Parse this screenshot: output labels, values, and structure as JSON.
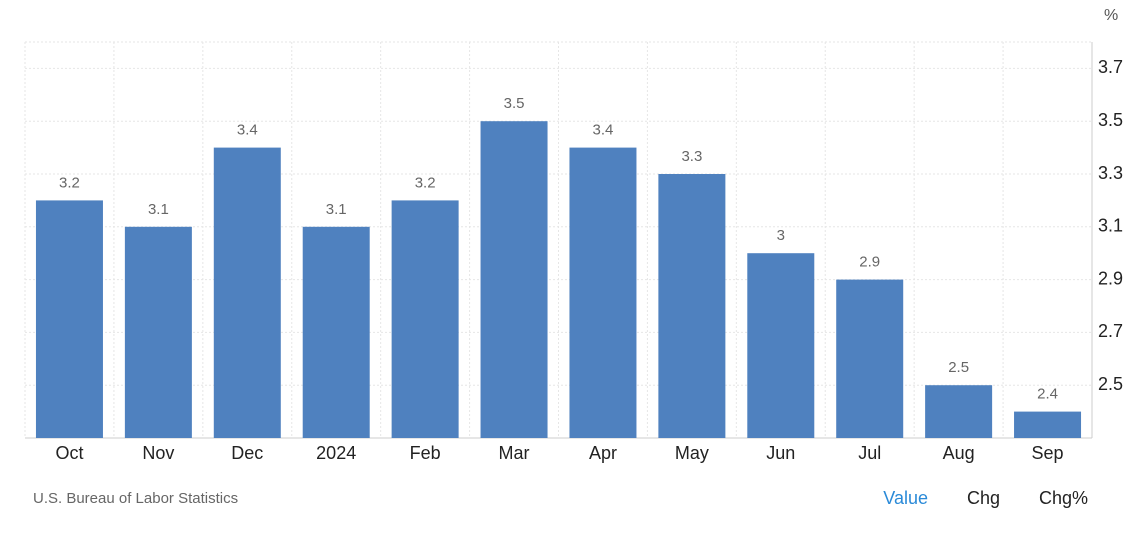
{
  "chart_data": {
    "type": "bar",
    "unit": "%",
    "categories": [
      "Oct",
      "Nov",
      "Dec",
      "2024",
      "Feb",
      "Mar",
      "Apr",
      "May",
      "Jun",
      "Jul",
      "Aug",
      "Sep"
    ],
    "values": [
      3.2,
      3.1,
      3.4,
      3.1,
      3.2,
      3.5,
      3.4,
      3.3,
      3,
      2.9,
      2.5,
      2.4
    ],
    "color": "#4f81bf",
    "ylim": [
      2.3,
      3.8
    ],
    "yticks": [
      2.5,
      2.7,
      2.9,
      3.1,
      3.3,
      3.5,
      3.7
    ],
    "grid": true
  },
  "footer": {
    "source": "U.S. Bureau of Labor Statistics",
    "tabs": [
      "Value",
      "Chg",
      "Chg%"
    ]
  }
}
